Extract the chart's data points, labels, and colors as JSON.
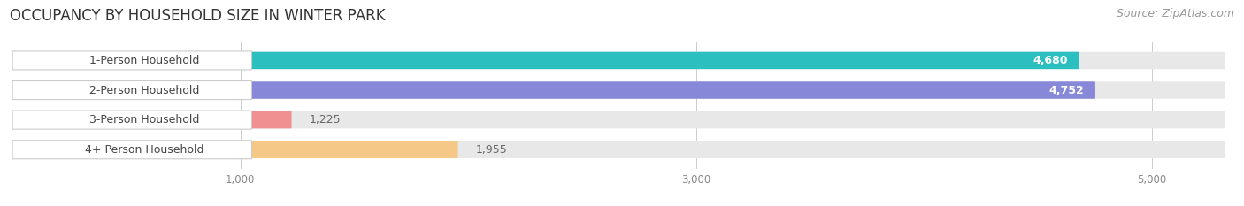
{
  "title": "OCCUPANCY BY HOUSEHOLD SIZE IN WINTER PARK",
  "source": "Source: ZipAtlas.com",
  "categories": [
    "1-Person Household",
    "2-Person Household",
    "3-Person Household",
    "4+ Person Household"
  ],
  "values": [
    4680,
    4752,
    1225,
    1955
  ],
  "bar_colors": [
    "#2bbfbf",
    "#8888d8",
    "#f09090",
    "#f5c888"
  ],
  "xlim": [
    0,
    5350
  ],
  "xticks": [
    1000,
    3000,
    5000
  ],
  "xtick_labels": [
    "1,000",
    "3,000",
    "5,000"
  ],
  "title_fontsize": 12,
  "source_fontsize": 9,
  "bar_label_fontsize": 9,
  "category_fontsize": 9,
  "bar_height": 0.58,
  "background_color": "#ffffff",
  "bar_bg_color": "#e8e8e8",
  "label_pill_color": "#ffffff",
  "label_text_color": "#444444",
  "value_inside_color": "#ffffff",
  "value_outside_color": "#666666"
}
